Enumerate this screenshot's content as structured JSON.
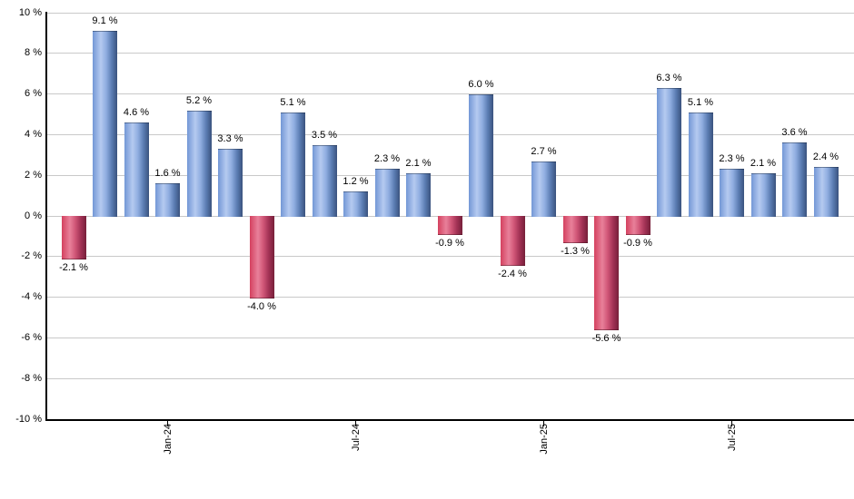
{
  "chart_data": {
    "type": "bar",
    "title": "",
    "xlabel": "",
    "ylabel": "",
    "ylim": [
      -10,
      10
    ],
    "grid": true,
    "legend": null,
    "values": [
      -2.1,
      9.1,
      4.6,
      1.6,
      5.2,
      3.3,
      -4.0,
      5.1,
      3.5,
      1.2,
      2.3,
      2.1,
      -0.9,
      6.0,
      -2.4,
      2.7,
      -1.3,
      -5.6,
      -0.9,
      6.3,
      5.1,
      2.3,
      2.1,
      3.6,
      2.4
    ],
    "bar_labels": [
      "-2.1 %",
      "9.1 %",
      "4.6 %",
      "1.6 %",
      "5.2 %",
      "3.3 %",
      "-4.0 %",
      "5.1 %",
      "3.5 %",
      "1.2 %",
      "2.3 %",
      "2.1 %",
      "-0.9 %",
      "6.0 %",
      "-2.4 %",
      "2.7 %",
      "-1.3 %",
      "-5.6 %",
      "-0.9 %",
      "6.3 %",
      "5.1 %",
      "2.3 %",
      "2.1 %",
      "3.6 %",
      "2.4 %"
    ],
    "y_ticks": [
      {
        "value": 10,
        "label": "10 %"
      },
      {
        "value": 8,
        "label": "8 %"
      },
      {
        "value": 6,
        "label": "6 %"
      },
      {
        "value": 4,
        "label": "4 %"
      },
      {
        "value": 2,
        "label": "2 %"
      },
      {
        "value": 0,
        "label": "0 %"
      },
      {
        "value": -2,
        "label": "-2 %"
      },
      {
        "value": -4,
        "label": "-4 %"
      },
      {
        "value": -6,
        "label": "-6 %"
      },
      {
        "value": -8,
        "label": "-8 %"
      },
      {
        "value": -10,
        "label": "-10 %"
      }
    ],
    "x_ticks": [
      {
        "bar_index": 3,
        "label": "Jan-24"
      },
      {
        "bar_index": 9,
        "label": "Jul-24"
      },
      {
        "bar_index": 15,
        "label": "Jan-25"
      },
      {
        "bar_index": 21,
        "label": "Jul-25"
      }
    ],
    "colors": {
      "positive_bar_gradient": [
        "#7397d6",
        "#b5caf0",
        "#8fade0",
        "#5a7cb2",
        "#3a527e"
      ],
      "negative_bar_gradient": [
        "#d4415f",
        "#e8809a",
        "#d05677",
        "#a13154",
        "#76203a"
      ],
      "gridline": "#c9c9c9",
      "axis": "#000000",
      "text": "#000000",
      "background": "#ffffff"
    }
  }
}
